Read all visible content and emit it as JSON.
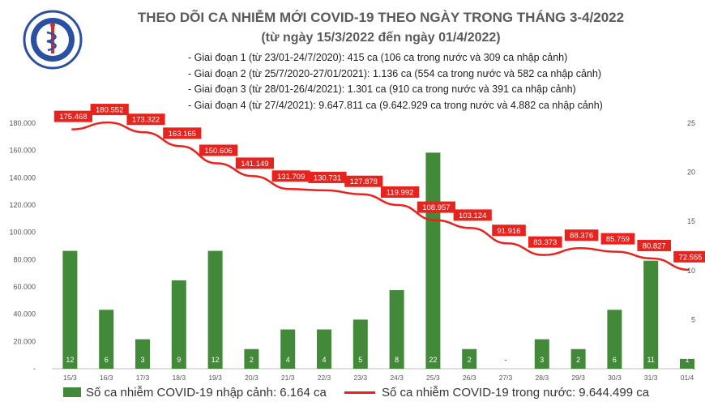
{
  "header": {
    "logo_text_top": "BỘ Y TẾ",
    "logo_text_bottom": "MINISTRY OF HEALTH",
    "title_line1": "THEO DÕI CA NHIỄM MỚI COVID-19 THEO NGÀY TRONG THÁNG 3-4/2022",
    "title_line2": "(từ ngày 15/3/2022 đến ngày 01/4/2022)",
    "phases": [
      "- Giai đoạn 1 (từ 23/01-24/7/2020): 415 ca (106 ca trong nước và 309 ca nhập cảnh)",
      "- Giai đoạn 2 (từ 25/7/2020-27/01/2021): 1.136 ca (554 ca trong nước và 582 ca nhập cảnh)",
      "- Giai đoạn 3 (từ 28/01-26/4/2021): 1.301 ca (910 ca trong nước và 391 ca nhập cảnh)",
      "- Giai đoạn 4 (từ 27/4/2021): 9.647.811 ca (9.642.929 ca trong nước và 4.882 ca nhập cảnh)"
    ]
  },
  "legend": {
    "bar_label": "Số ca nhiễm COVID-19 nhập cảnh: 6.164 ca",
    "line_label": "Số ca nhiễm COVID-19 trong nước: 9.644.499 ca"
  },
  "colors": {
    "bar": "#43893a",
    "line": "#e8221d",
    "label_bg": "#e8221d",
    "axis_text": "#555555"
  },
  "chart_data": {
    "type": "bar+line",
    "categories": [
      "15/3",
      "16/3",
      "17/3",
      "18/3",
      "19/3",
      "20/3",
      "21/3",
      "22/3",
      "23/3",
      "24/3",
      "25/3",
      "26/3",
      "27/3",
      "28/3",
      "29/3",
      "30/3",
      "31/3",
      "01/4"
    ],
    "series": [
      {
        "name": "Số ca nhiễm COVID-19 nhập cảnh: 6.164 ca",
        "type": "bar",
        "axis": "right",
        "values": [
          12,
          6,
          3,
          9,
          12,
          2,
          4,
          4,
          5,
          8,
          22,
          2,
          0,
          3,
          2,
          6,
          11,
          1
        ],
        "value_labels": [
          "12",
          "6",
          "3",
          "9",
          "12",
          "2",
          "4",
          "4",
          "5",
          "8",
          "22",
          "2",
          "-",
          "3",
          "2",
          "6",
          "11",
          "1"
        ]
      },
      {
        "name": "Số ca nhiễm COVID-19 trong nước: 9.644.499 ca",
        "type": "line",
        "axis": "left",
        "values": [
          175468,
          180552,
          173322,
          163165,
          150606,
          141149,
          131709,
          130731,
          127878,
          119992,
          108957,
          103124,
          91916,
          83373,
          88376,
          85759,
          80827,
          72555
        ],
        "value_labels": [
          "175.468",
          "180.552",
          "173.322",
          "163.165",
          "150.606",
          "141.149",
          "131.709",
          "130.731",
          "127.878",
          "119.992",
          "108.957",
          "103.124",
          "91.916",
          "83.373",
          "88.376",
          "85.759",
          "80.827",
          "72.555"
        ]
      }
    ],
    "y_left": {
      "ylim": [
        0,
        180000
      ],
      "ticks": [
        0,
        20000,
        40000,
        60000,
        80000,
        100000,
        120000,
        140000,
        160000,
        180000
      ],
      "tick_labels": [
        "-",
        "20.000",
        "40.000",
        "60.000",
        "80.000",
        "100.000",
        "120.000",
        "140.000",
        "160.000",
        "180.000"
      ]
    },
    "y_right": {
      "ylim": [
        0,
        25
      ],
      "ticks": [
        0,
        5,
        10,
        15,
        20,
        25
      ],
      "tick_labels": [
        "-",
        "5",
        "10",
        "15",
        "20",
        "25"
      ]
    },
    "grid": false,
    "legend_position": "bottom"
  }
}
